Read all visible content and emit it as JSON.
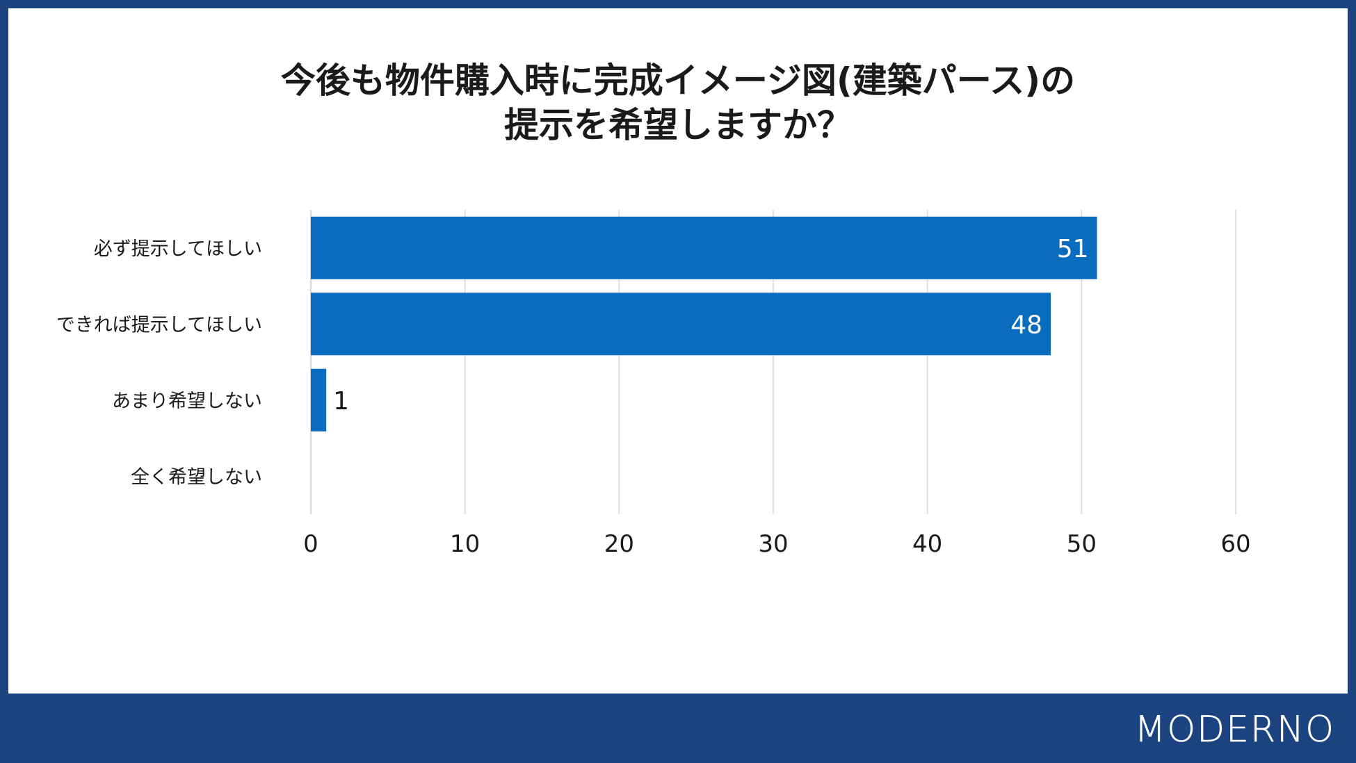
{
  "chart_data": {
    "type": "bar",
    "orientation": "horizontal",
    "title": [
      "今後も物件購入時に完成イメージ図(建築パース)の",
      "提示を希望しますか？"
    ],
    "categories": [
      "必ず提示してほしい",
      "できれば提示してほしい",
      "あまり希望しない",
      "全く希望しない"
    ],
    "values": [
      51,
      48,
      1,
      0
    ],
    "data_labels": [
      "51",
      "48",
      "1",
      ""
    ],
    "xlim": [
      0,
      60
    ],
    "xticks": [
      0,
      10,
      20,
      30,
      40,
      50,
      60
    ],
    "xlabel": "",
    "ylabel": "",
    "grid": "vertical",
    "bar_color": "#0a6cbf"
  },
  "brand": {
    "logo": "MODERNO"
  },
  "colors": {
    "frame": "#1a4380",
    "bar": "#0a6cbf",
    "grid": "#d9d9d9"
  }
}
